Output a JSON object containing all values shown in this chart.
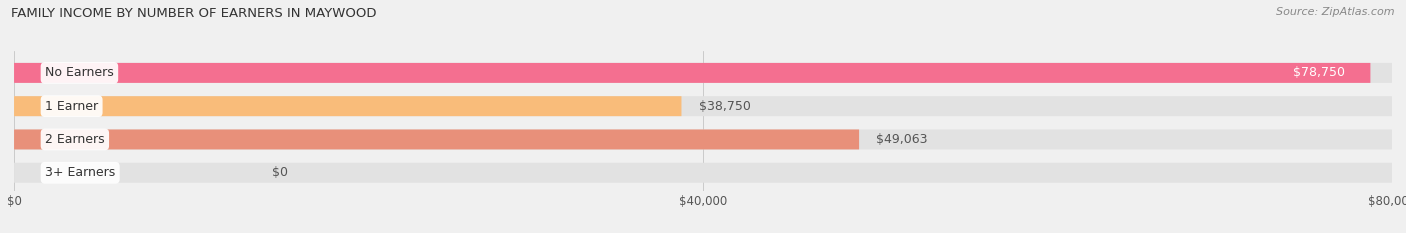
{
  "title": "FAMILY INCOME BY NUMBER OF EARNERS IN MAYWOOD",
  "source": "Source: ZipAtlas.com",
  "categories": [
    "No Earners",
    "1 Earner",
    "2 Earners",
    "3+ Earners"
  ],
  "values": [
    78750,
    38750,
    49063,
    0
  ],
  "bar_colors": [
    "#F46F90",
    "#F9BC7A",
    "#E8907A",
    "#A8C0E8"
  ],
  "value_labels": [
    "$78,750",
    "$38,750",
    "$49,063",
    "$0"
  ],
  "xlim": [
    0,
    80000
  ],
  "xticks": [
    0,
    40000,
    80000
  ],
  "xtick_labels": [
    "$0",
    "$40,000",
    "$80,000"
  ],
  "background_color": "#f0f0f0",
  "bar_background": "#e2e2e2",
  "title_fontsize": 9.5,
  "source_fontsize": 8,
  "label_fontsize": 9,
  "value_fontsize": 9,
  "tick_fontsize": 8.5
}
